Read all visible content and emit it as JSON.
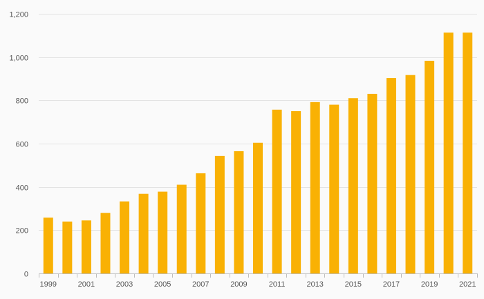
{
  "chart_data": {
    "type": "bar",
    "title": "",
    "xlabel": "",
    "ylabel": "",
    "categories": [
      "1999",
      "2000",
      "2001",
      "2002",
      "2003",
      "2004",
      "2005",
      "2006",
      "2007",
      "2008",
      "2009",
      "2010",
      "2011",
      "2012",
      "2013",
      "2014",
      "2015",
      "2016",
      "2017",
      "2018",
      "2019",
      "2020",
      "2021"
    ],
    "values": [
      258,
      240,
      245,
      280,
      333,
      368,
      378,
      410,
      463,
      543,
      565,
      604,
      757,
      750,
      792,
      780,
      810,
      830,
      903,
      917,
      983,
      1113,
      1113
    ],
    "x_tick_labels": [
      "1999",
      "2001",
      "2003",
      "2005",
      "2007",
      "2009",
      "2011",
      "2013",
      "2015",
      "2017",
      "2019",
      "2021"
    ],
    "y_ticks": [
      0,
      200,
      400,
      600,
      800,
      1000,
      1200
    ],
    "y_tick_labels": [
      "0",
      "200",
      "400",
      "600",
      "800",
      "1,000",
      "1,200"
    ],
    "ylim": [
      0,
      1200
    ],
    "grid": true,
    "legend": "none",
    "colors": {
      "bar": "#f9b104",
      "grid": "#e3e3e3",
      "axis": "#bdbdbd",
      "text": "#555555",
      "background": "#fafafa"
    }
  }
}
